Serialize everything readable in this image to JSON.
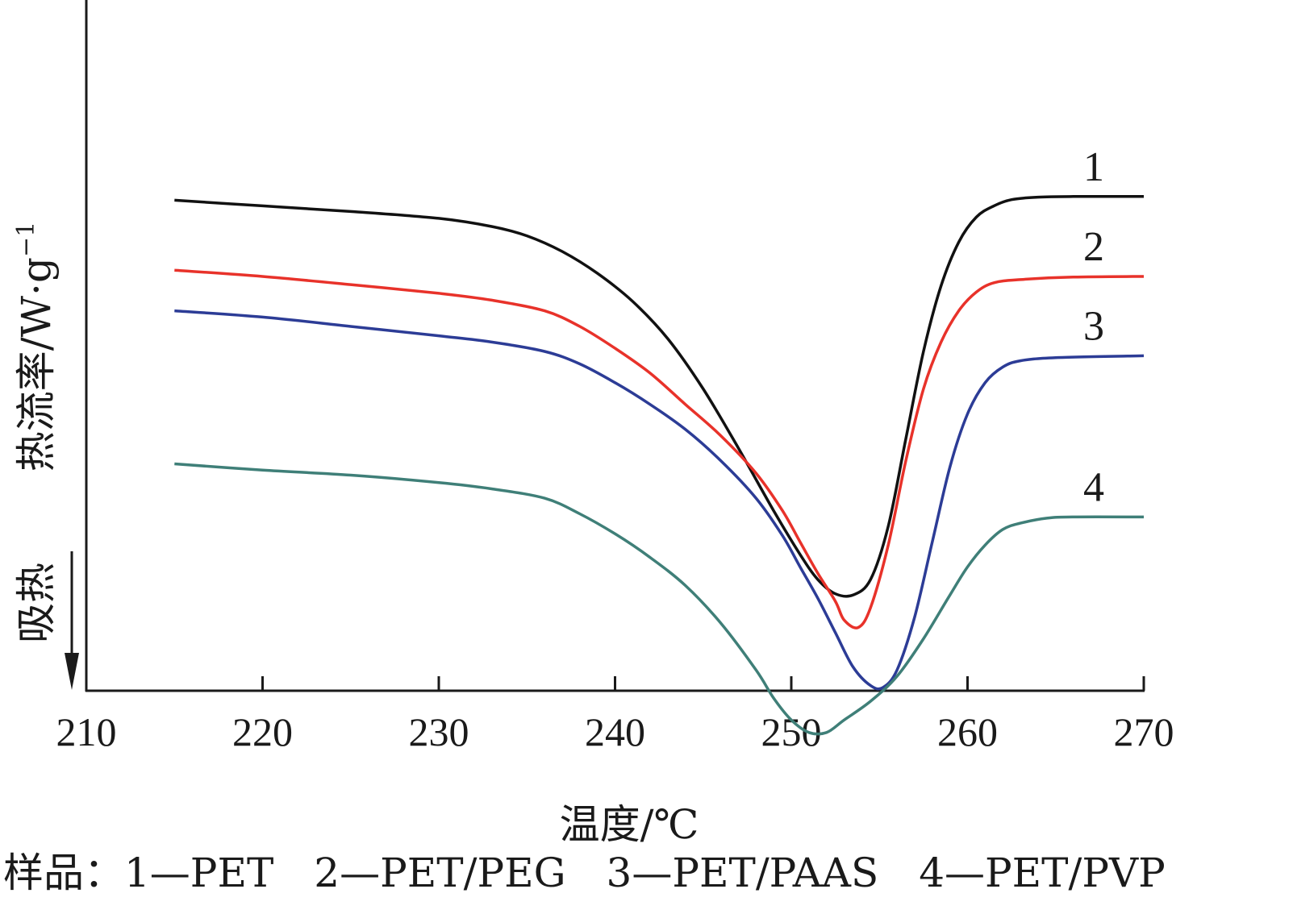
{
  "chart_data": {
    "type": "line",
    "xlabel": "温度/℃",
    "ylabel": "热流率/W·g",
    "ylabel_sup": "−1",
    "endotherm_label": "吸热",
    "xlim": [
      210,
      270
    ],
    "ylim": [
      0,
      100
    ],
    "x_ticks": [
      210,
      220,
      230,
      240,
      250,
      260,
      270
    ],
    "x_tick_labels": [
      "210",
      "220",
      "230",
      "240",
      "250",
      "260",
      "270"
    ],
    "grid": false,
    "y_tick_labels_shown": false,
    "caption": "样品：1—PET　2—PET/PEG　3—PET/PAAS　4—PET/PVP",
    "series": [
      {
        "name": "1",
        "color": "#111111",
        "points": [
          [
            215,
            80.2
          ],
          [
            220,
            79.3
          ],
          [
            225,
            78.4
          ],
          [
            230,
            77.3
          ],
          [
            233,
            76.0
          ],
          [
            235,
            74.5
          ],
          [
            237,
            72.0
          ],
          [
            239,
            68.5
          ],
          [
            241,
            64.0
          ],
          [
            243,
            58.0
          ],
          [
            245,
            50.0
          ],
          [
            247,
            40.5
          ],
          [
            249,
            30.5
          ],
          [
            250.5,
            23.5
          ],
          [
            251.5,
            19.5
          ],
          [
            252.5,
            17.2
          ],
          [
            253.5,
            17.0
          ],
          [
            254.5,
            19.5
          ],
          [
            255.5,
            28.0
          ],
          [
            256.5,
            42.0
          ],
          [
            257.5,
            56.0
          ],
          [
            258.5,
            66.5
          ],
          [
            259.5,
            73.5
          ],
          [
            260.5,
            77.5
          ],
          [
            261.5,
            79.3
          ],
          [
            262.5,
            80.3
          ],
          [
            264,
            80.7
          ],
          [
            266,
            80.8
          ],
          [
            270,
            80.8
          ]
        ]
      },
      {
        "name": "2",
        "color": "#e8322a",
        "points": [
          [
            215,
            69.0
          ],
          [
            220,
            68.0
          ],
          [
            225,
            66.7
          ],
          [
            230,
            65.3
          ],
          [
            233,
            64.2
          ],
          [
            236,
            62.5
          ],
          [
            238,
            60.0
          ],
          [
            240,
            56.5
          ],
          [
            242,
            52.5
          ],
          [
            244,
            47.5
          ],
          [
            246,
            42.5
          ],
          [
            248,
            36.5
          ],
          [
            249.5,
            30.5
          ],
          [
            250.5,
            25.5
          ],
          [
            251.5,
            20.5
          ],
          [
            252.5,
            16.0
          ],
          [
            253,
            13.0
          ],
          [
            253.8,
            11.8
          ],
          [
            254.5,
            15.0
          ],
          [
            255.5,
            25.0
          ],
          [
            256.5,
            38.5
          ],
          [
            257.5,
            50.0
          ],
          [
            258.5,
            57.5
          ],
          [
            259.5,
            62.5
          ],
          [
            260.5,
            65.5
          ],
          [
            261.5,
            67.0
          ],
          [
            263,
            67.5
          ],
          [
            266,
            67.9
          ],
          [
            270,
            68.0
          ]
        ]
      },
      {
        "name": "3",
        "color": "#2c3c96",
        "points": [
          [
            215,
            62.5
          ],
          [
            220,
            61.5
          ],
          [
            225,
            60.0
          ],
          [
            230,
            58.5
          ],
          [
            233,
            57.5
          ],
          [
            236,
            56.0
          ],
          [
            238,
            54.0
          ],
          [
            240,
            51.0
          ],
          [
            242,
            47.5
          ],
          [
            244,
            43.5
          ],
          [
            246,
            38.5
          ],
          [
            248,
            32.5
          ],
          [
            249.5,
            26.5
          ],
          [
            250.5,
            21.5
          ],
          [
            251.5,
            16.5
          ],
          [
            252.5,
            11.0
          ],
          [
            253.5,
            5.5
          ],
          [
            254.5,
            2.5
          ],
          [
            255.2,
            2.2
          ],
          [
            256,
            5.0
          ],
          [
            257,
            13.5
          ],
          [
            258,
            25.5
          ],
          [
            259,
            37.5
          ],
          [
            260,
            46.0
          ],
          [
            261,
            51.0
          ],
          [
            262,
            53.5
          ],
          [
            263,
            54.5
          ],
          [
            265,
            55.0
          ],
          [
            270,
            55.3
          ]
        ]
      },
      {
        "name": "4",
        "color": "#3f7f78",
        "points": [
          [
            215,
            38.0
          ],
          [
            220,
            37.0
          ],
          [
            225,
            36.2
          ],
          [
            230,
            35.0
          ],
          [
            233,
            34.0
          ],
          [
            236,
            32.5
          ],
          [
            238,
            30.0
          ],
          [
            240,
            26.8
          ],
          [
            242,
            23.0
          ],
          [
            244,
            18.5
          ],
          [
            246,
            12.5
          ],
          [
            248,
            5.0
          ],
          [
            249,
            0.5
          ],
          [
            250,
            -3.0
          ],
          [
            251,
            -5.0
          ],
          [
            252,
            -5.0
          ],
          [
            253,
            -3.0
          ],
          [
            254.5,
            0.0
          ],
          [
            256,
            4.0
          ],
          [
            257.5,
            10.0
          ],
          [
            259,
            17.0
          ],
          [
            260,
            21.5
          ],
          [
            261,
            25.0
          ],
          [
            262,
            27.5
          ],
          [
            263,
            28.5
          ],
          [
            264.5,
            29.3
          ],
          [
            266,
            29.5
          ],
          [
            270,
            29.5
          ]
        ]
      }
    ]
  }
}
